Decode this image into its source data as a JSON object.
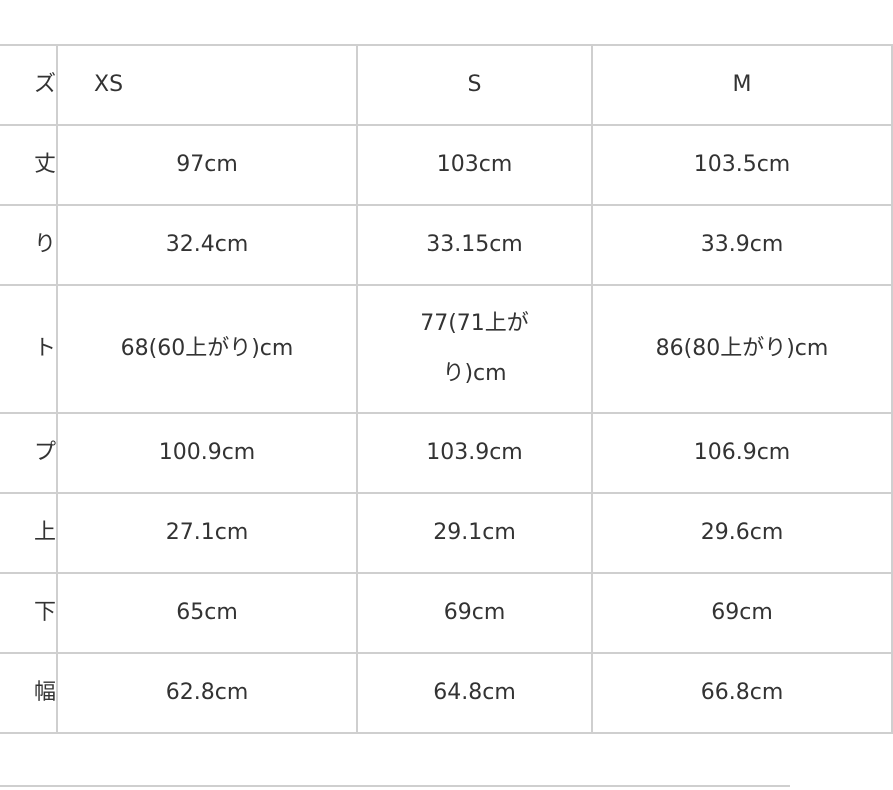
{
  "header": {
    "label": "ズ",
    "sizes": [
      "XS",
      "S",
      "M"
    ]
  },
  "rows": [
    {
      "label": "丈",
      "values": [
        "97cm",
        "103cm",
        "103.5cm"
      ]
    },
    {
      "label": "り",
      "values": [
        "32.4cm",
        "33.15cm",
        "33.9cm"
      ]
    },
    {
      "label": "ト",
      "values": [
        "68(60上がり)cm",
        "77(71上がり)cm",
        "86(80上がり)cm"
      ]
    },
    {
      "label": "プ",
      "values": [
        "100.9cm",
        "103.9cm",
        "106.9cm"
      ]
    },
    {
      "label": "上",
      "values": [
        "27.1cm",
        "29.1cm",
        "29.6cm"
      ]
    },
    {
      "label": "下",
      "values": [
        "65cm",
        "69cm",
        "69cm"
      ]
    },
    {
      "label": "幅",
      "values": [
        "62.8cm",
        "64.8cm",
        "66.8cm"
      ]
    }
  ]
}
